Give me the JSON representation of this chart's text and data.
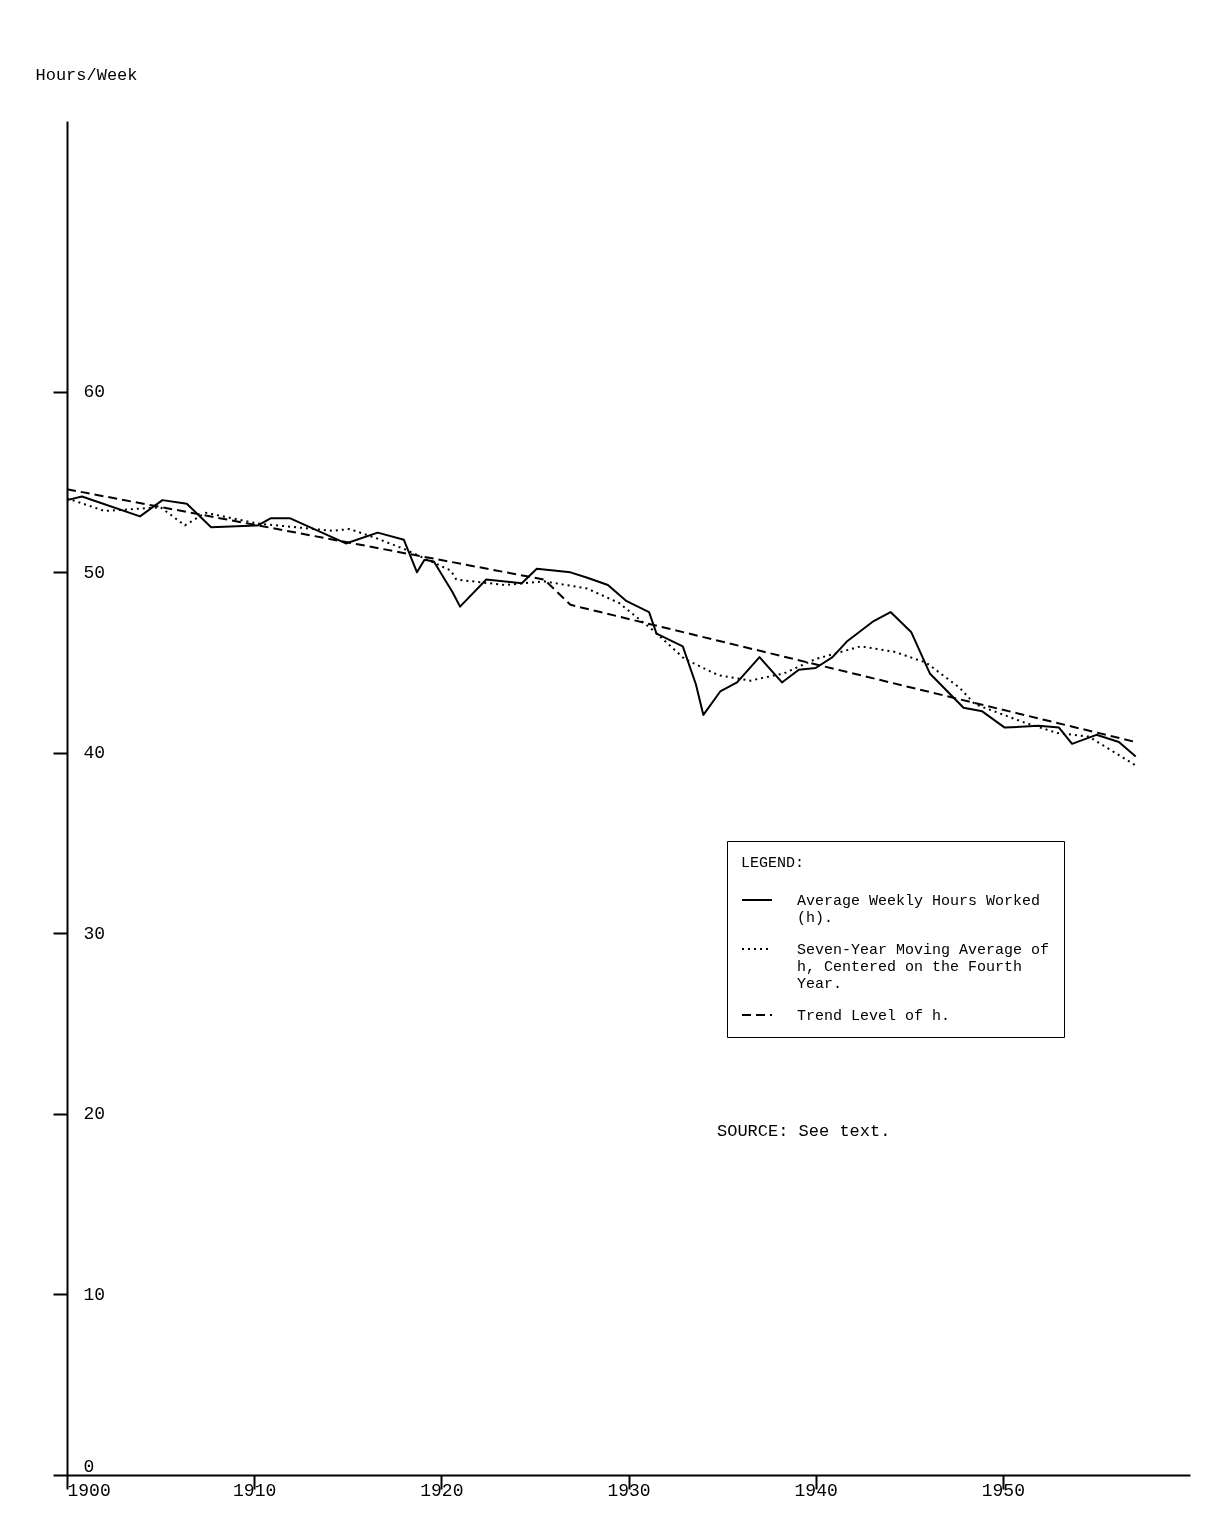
{
  "chart_data": {
    "type": "line",
    "ylabel": "Hours/Week",
    "legend_title": "LEGEND:",
    "legend": "right",
    "grid": false,
    "xlim": [
      1900,
      1960
    ],
    "xticks": [
      1900,
      1910,
      1920,
      1930,
      1940,
      1950
    ],
    "ylim": [
      0,
      75
    ],
    "yticks": [
      0,
      10,
      20,
      30,
      40,
      50,
      60
    ],
    "annotations": [
      "SOURCE:  See text."
    ],
    "series": [
      {
        "name": "Average Weekly Hours Worked (h).",
        "color": "#000000",
        "line_style": "solid",
        "x": [
          1900,
          1900.8,
          1903.9,
          1905.1,
          1906.4,
          1907.7,
          1910.2,
          1910.9,
          1911.9,
          1914.9,
          1916.6,
          1918.0,
          1918.7,
          1919.1,
          1919.6,
          1920.6,
          1921.0,
          1922.4,
          1924.3,
          1925.1,
          1926.9,
          1927.8,
          1928.9,
          1929.9,
          1931.1,
          1931.5,
          1932.9,
          1933.6,
          1934.0,
          1934.9,
          1935.8,
          1937.0,
          1938.2,
          1939.1,
          1940.0,
          1940.9,
          1941.7,
          1943.1,
          1944.0,
          1945.1,
          1946.1,
          1947.9,
          1948.9,
          1950.1,
          1951.9,
          1953.0,
          1953.7,
          1955.0,
          1956.2,
          1957.1
        ],
        "values": [
          54.0,
          54.2,
          53.1,
          54.0,
          53.8,
          52.5,
          52.6,
          53.0,
          53.0,
          51.6,
          52.2,
          51.8,
          50.0,
          50.7,
          50.6,
          48.9,
          48.1,
          49.6,
          49.4,
          50.2,
          50.0,
          49.7,
          49.3,
          48.4,
          47.8,
          46.6,
          45.9,
          43.8,
          42.1,
          43.4,
          43.9,
          45.3,
          43.9,
          44.6,
          44.7,
          45.3,
          46.2,
          47.3,
          47.8,
          46.7,
          44.4,
          42.5,
          42.3,
          41.4,
          41.5,
          41.4,
          40.5,
          41.0,
          40.6,
          39.8
        ]
      },
      {
        "name": "Seven-Year Moving Average of h, Centered on the Fourth Year.",
        "color": "#000000",
        "line_style": "dotted",
        "x": [
          1900,
          1902.0,
          1905.0,
          1906.3,
          1907.4,
          1910.2,
          1914.2,
          1915.1,
          1916.5,
          1918.0,
          1920.5,
          1920.8,
          1923.4,
          1925.5,
          1927.8,
          1929.5,
          1931.3,
          1933.0,
          1934.8,
          1936.5,
          1938.3,
          1940.0,
          1940.7,
          1942.4,
          1944.2,
          1945.9,
          1947.7,
          1948.5,
          1951.1,
          1952.9,
          1954.6,
          1957.1
        ],
        "values": [
          54.1,
          53.4,
          53.6,
          52.6,
          53.3,
          52.7,
          52.3,
          52.4,
          51.9,
          51.3,
          50.1,
          49.6,
          49.3,
          49.5,
          49.1,
          48.3,
          46.8,
          45.2,
          44.3,
          44.0,
          44.4,
          45.2,
          45.4,
          45.9,
          45.6,
          45.0,
          43.6,
          42.7,
          41.7,
          41.1,
          40.9,
          39.3
        ]
      },
      {
        "name": "Trend Level of h.",
        "color": "#000000",
        "line_style": "dashed",
        "x": [
          1900,
          1925.5,
          null,
          1926.9,
          1957.1
        ],
        "values": [
          54.6,
          49.6,
          null,
          48.2,
          40.6
        ]
      }
    ]
  }
}
